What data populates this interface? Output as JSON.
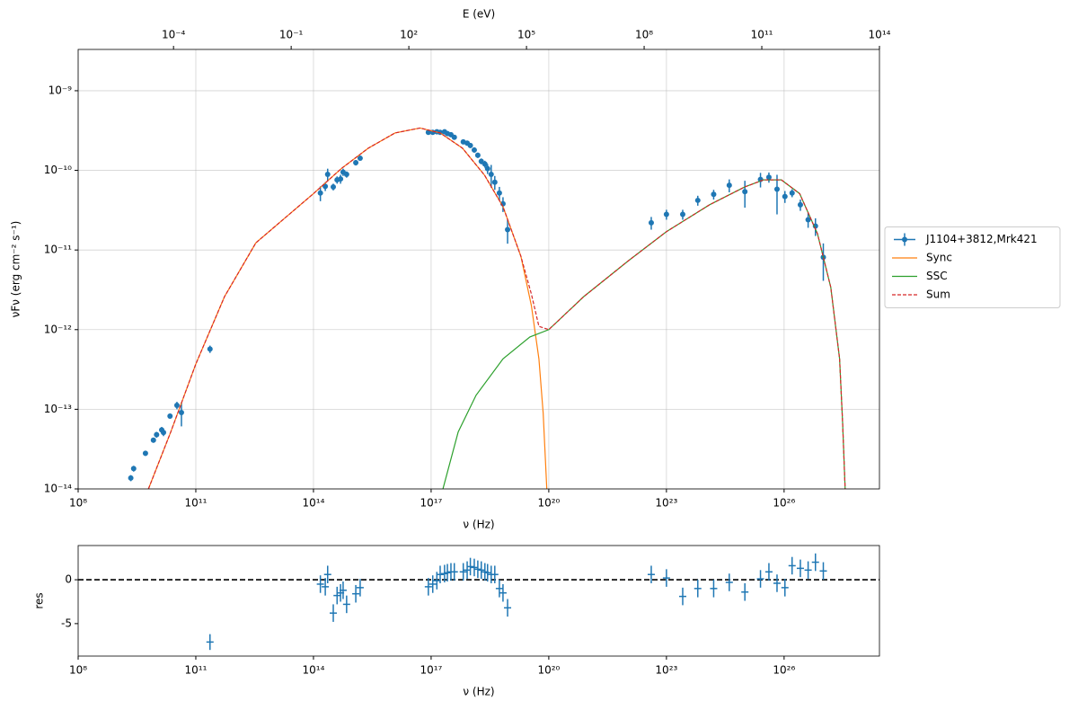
{
  "chart_data": [
    {
      "type": "scatter",
      "x_label": "ν  (Hz)",
      "y_label": "νFν  (erg cm⁻²  s⁻¹)",
      "x2_label": "E (eV)",
      "xscale": "log",
      "yscale": "log",
      "grid": true,
      "legend": "right",
      "xlim": [
        100000000.0,
        2.7e+28
      ],
      "ylim": [
        1e-14,
        3.3e-09
      ],
      "xticks": [
        {
          "value": 100000000.0,
          "label": "10⁸"
        },
        {
          "value": 100000000000.0,
          "label": "10¹¹"
        },
        {
          "value": 100000000000000.0,
          "label": "10¹⁴"
        },
        {
          "value": 1e+17,
          "label": "10¹⁷"
        },
        {
          "value": 1e+20,
          "label": "10²⁰"
        },
        {
          "value": 1e+23,
          "label": "10²³"
        },
        {
          "value": 1e+26,
          "label": "10²⁶"
        }
      ],
      "yticks": [
        {
          "value": 1e-14,
          "label": "10⁻¹⁴"
        },
        {
          "value": 1e-13,
          "label": "10⁻¹³"
        },
        {
          "value": 1e-12,
          "label": "10⁻¹²"
        },
        {
          "value": 1e-11,
          "label": "10⁻¹¹"
        },
        {
          "value": 1e-10,
          "label": "10⁻¹⁰"
        },
        {
          "value": 1e-09,
          "label": "10⁻⁹"
        }
      ],
      "x2lim": [
        3.7e-07,
        100000000000000.0
      ],
      "x2ticks": [
        {
          "value": 0.0001,
          "label": "10⁻⁴"
        },
        {
          "value": 0.1,
          "label": "10⁻¹"
        },
        {
          "value": 100.0,
          "label": "10²"
        },
        {
          "value": 100000.0,
          "label": "10⁵"
        },
        {
          "value": 100000000.0,
          "label": "10⁸"
        },
        {
          "value": 100000000000.0,
          "label": "10¹¹"
        },
        {
          "value": 100000000000000.0,
          "label": "10¹⁴"
        }
      ],
      "series": [
        {
          "name": "J1104+3812,Mrk421",
          "color": "#1f77b4",
          "marker": "o",
          "x": [
            2200000000.0,
            2600000000.0,
            5200000000.0,
            8300000000.0,
            10000000000.0,
            13500000000.0,
            15000000000.0,
            22000000000.0,
            33000000000.0,
            43000000000.0,
            230000000000.0,
            150000000000000.0,
            200000000000000.0,
            230000000000000.0,
            320000000000000.0,
            400000000000000.0,
            490000000000000.0,
            570000000000000.0,
            700000000000000.0,
            1200000000000000.0,
            1550000000000000.0,
            8.5e+16,
            1.1e+17,
            1.4e+17,
            1.7e+17,
            2.2e+17,
            2.6e+17,
            3.2e+17,
            3.9e+17,
            6.6e+17,
            8.3e+17,
            1e+18,
            1.26e+18,
            1.55e+18,
            1.9e+18,
            2.35e+18,
            2.75e+18,
            3.4e+18,
            4.2e+18,
            5.5e+18,
            6.8e+18,
            8.9e+18,
            4.1e+22,
            1e+23,
            2.6e+23,
            6.3e+23,
            1.6e+24,
            4e+24,
            1e+25,
            2.5e+25,
            4.1e+25,
            6.6e+25,
            1.05e+26,
            1.6e+26,
            2.6e+26,
            4.1e+26,
            6.3e+26,
            1e+27
          ],
          "values": [
            1.37e-14,
            1.8e-14,
            2.8e-14,
            4.1e-14,
            4.8e-14,
            5.5e-14,
            5.1e-14,
            8.2e-14,
            1.12e-13,
            9.1e-14,
            5.7e-13,
            5.2e-11,
            6.3e-11,
            8.9e-11,
            6.2e-11,
            7.6e-11,
            7.8e-11,
            9.5e-11,
            8.9e-11,
            1.25e-10,
            1.42e-10,
            3e-10,
            3e-10,
            3.05e-10,
            3e-10,
            3.05e-10,
            2.9e-10,
            2.8e-10,
            2.6e-10,
            2.28e-10,
            2.2e-10,
            2.05e-10,
            1.8e-10,
            1.55e-10,
            1.3e-10,
            1.2e-10,
            1.05e-10,
            8.9e-11,
            7.1e-11,
            5.2e-11,
            3.8e-11,
            1.8e-11,
            2.2e-11,
            2.8e-11,
            2.8e-11,
            4.2e-11,
            5e-11,
            6.5e-11,
            5.4e-11,
            7.7e-11,
            8.2e-11,
            5.8e-11,
            4.7e-11,
            5.2e-11,
            3.7e-11,
            2.4e-11,
            2e-11,
            8.1e-12
          ],
          "errors": [
            1.2e-15,
            1.5e-15,
            2e-15,
            3e-15,
            4e-15,
            5e-15,
            5e-15,
            6e-15,
            1.2e-14,
            3e-14,
            6e-14,
            1.1e-11,
            8e-12,
            1.6e-11,
            6e-12,
            8e-12,
            1e-11,
            1e-11,
            8e-12,
            1e-11,
            8e-12,
            1.5e-11,
            1.5e-11,
            1.5e-11,
            1.5e-11,
            1.5e-11,
            1.5e-11,
            1.4e-11,
            1.3e-11,
            1.5e-11,
            1.5e-11,
            1.4e-11,
            1.3e-11,
            1.2e-11,
            1.1e-11,
            1.2e-11,
            1.5e-11,
            2.8e-11,
            1.4e-11,
            1e-11,
            8e-12,
            6e-12,
            4e-12,
            4e-12,
            4e-12,
            6e-12,
            7e-12,
            1.2e-11,
            2e-11,
            1.6e-11,
            1.2e-11,
            3e-11,
            8e-12,
            6e-12,
            6e-12,
            5e-12,
            5e-12,
            4e-12
          ]
        },
        {
          "name": "Sync",
          "color": "#ff7f0e",
          "linestyle": "solid",
          "x": [
            6200000000.0,
            23000000000.0,
            100000000000.0,
            540000000000.0,
            3400000000000.0,
            22000000000000.0,
            100000000000000.0,
            510000000000000.0,
            2500000000000000.0,
            1.2e+16,
            5.2e+16,
            1.7e+17,
            6.3e+17,
            2.3e+18,
            6.8e+18,
            1.95e+19,
            3.6e+19,
            5.6e+19,
            7.2e+19,
            8.9e+19
          ],
          "values": [
            1e-14,
            5.2e-14,
            3.7e-13,
            2.6e-12,
            1.23e-11,
            2.7e-11,
            5.1e-11,
            1.05e-10,
            1.9e-10,
            2.95e-10,
            3.4e-10,
            2.95e-10,
            1.9e-10,
            8.7e-11,
            3.5e-11,
            8.3e-12,
            2e-12,
            4.3e-13,
            8.9e-14,
            1e-14
          ]
        },
        {
          "name": "SSC",
          "color": "#2ca02c",
          "linestyle": "solid",
          "x": [
            2e+17,
            4.9e+17,
            1.4e+18,
            6.8e+18,
            3.3e+19,
            1e+20,
            7.8e+20,
            1.1e+22,
            1e+23,
            1.26e+24,
            1e+25,
            3e+25,
            8.5e+25,
            2.5e+26,
            7.1e+26,
            1.55e+27,
            2.6e+27,
            3.1e+27,
            3.6e+27
          ],
          "values": [
            1e-14,
            5.2e-14,
            1.5e-13,
            4.3e-13,
            8.1e-13,
            1e-12,
            2.6e-12,
            7.4e-12,
            1.7e-11,
            3.7e-11,
            6.2e-11,
            7.6e-11,
            7.6e-11,
            5.1e-11,
            1.6e-11,
            3.4e-12,
            4.3e-13,
            6.9e-14,
            1e-14
          ]
        },
        {
          "name": "Sum",
          "color": "#d62728",
          "linestyle": "dashed",
          "x": [
            6200000000.0,
            23000000000.0,
            100000000000.0,
            540000000000.0,
            3400000000000.0,
            22000000000000.0,
            100000000000000.0,
            510000000000000.0,
            2500000000000000.0,
            1.2e+16,
            5.2e+16,
            1.7e+17,
            6.3e+17,
            2.3e+18,
            6.8e+18,
            1.95e+19,
            3.6e+19,
            5.6e+19,
            1e+20,
            7.8e+20,
            1.1e+22,
            1e+23,
            1.26e+24,
            1e+25,
            3e+25,
            8.5e+25,
            2.5e+26,
            7.1e+26,
            1.55e+27,
            2.6e+27,
            3.1e+27,
            3.6e+27
          ],
          "values": [
            1e-14,
            5.2e-14,
            3.7e-13,
            2.6e-12,
            1.23e-11,
            2.7e-11,
            5.1e-11,
            1.05e-10,
            1.9e-10,
            2.95e-10,
            3.4e-10,
            2.95e-10,
            1.9e-10,
            8.7e-11,
            3.5e-11,
            8.3e-12,
            2.8e-12,
            1.1e-12,
            1e-12,
            2.6e-12,
            7.4e-12,
            1.7e-11,
            3.7e-11,
            6.2e-11,
            7.6e-11,
            7.6e-11,
            5.1e-11,
            1.6e-11,
            3.4e-12,
            4.3e-13,
            6.9e-14,
            1e-14
          ]
        }
      ]
    },
    {
      "type": "scatter",
      "x_label": "ν  (Hz)",
      "y_label": "res",
      "xscale": "log",
      "grid": false,
      "reference_line": 0,
      "xlim": [
        100000000.0,
        2.7e+28
      ],
      "ylim": [
        -8.7,
        3.9
      ],
      "xticks": [
        {
          "value": 100000000.0,
          "label": "10⁸"
        },
        {
          "value": 100000000000.0,
          "label": "10¹¹"
        },
        {
          "value": 100000000000000.0,
          "label": "10¹⁴"
        },
        {
          "value": 1e+17,
          "label": "10¹⁷"
        },
        {
          "value": 1e+20,
          "label": "10²⁰"
        },
        {
          "value": 1e+23,
          "label": "10²³"
        },
        {
          "value": 1e+26,
          "label": "10²⁶"
        }
      ],
      "yticks": [
        -5,
        0
      ],
      "series": [
        {
          "color": "#1f77b4",
          "marker": "+",
          "x": [
            230000000000.0,
            150000000000000.0,
            200000000000000.0,
            230000000000000.0,
            320000000000000.0,
            400000000000000.0,
            490000000000000.0,
            570000000000000.0,
            700000000000000.0,
            1200000000000000.0,
            1550000000000000.0,
            8.5e+16,
            1.1e+17,
            1.4e+17,
            1.7e+17,
            2.2e+17,
            2.6e+17,
            3.2e+17,
            3.9e+17,
            6.6e+17,
            8.3e+17,
            1e+18,
            1.26e+18,
            1.55e+18,
            1.9e+18,
            2.35e+18,
            2.75e+18,
            3.4e+18,
            4.2e+18,
            5.5e+18,
            6.8e+18,
            8.9e+18,
            4.1e+22,
            1e+23,
            2.6e+23,
            6.3e+23,
            1.6e+24,
            4e+24,
            1e+25,
            2.5e+25,
            4.1e+25,
            6.6e+25,
            1.05e+26,
            1.6e+26,
            2.6e+26,
            4.1e+26,
            6.3e+26,
            1e+27
          ],
          "values": [
            -7.1,
            -0.5,
            -0.8,
            0.6,
            -3.8,
            -1.8,
            -1.5,
            -1.2,
            -2.8,
            -1.6,
            -0.9,
            -0.8,
            -0.5,
            -0.1,
            0.6,
            0.7,
            0.8,
            0.9,
            0.9,
            0.9,
            1.1,
            1.5,
            1.4,
            1.2,
            1.1,
            0.9,
            0.8,
            0.6,
            0.6,
            -1.0,
            -1.5,
            -3.2,
            0.6,
            0.2,
            -1.9,
            -1.0,
            -1.0,
            -0.3,
            -1.4,
            0.1,
            0.9,
            -0.4,
            -0.9,
            1.6,
            1.3,
            1.1,
            2.0,
            1.0
          ],
          "errors": [
            0.9,
            1,
            1,
            1,
            1,
            1,
            1,
            1,
            1,
            1,
            1,
            1,
            1,
            1,
            1,
            1,
            1,
            1,
            1,
            1,
            1,
            1,
            1,
            1,
            1,
            1,
            1,
            1,
            1,
            1,
            1,
            1,
            1,
            1,
            1,
            1,
            1,
            1,
            1,
            1,
            1,
            1,
            1,
            1,
            1,
            1,
            1,
            1
          ]
        }
      ]
    }
  ]
}
